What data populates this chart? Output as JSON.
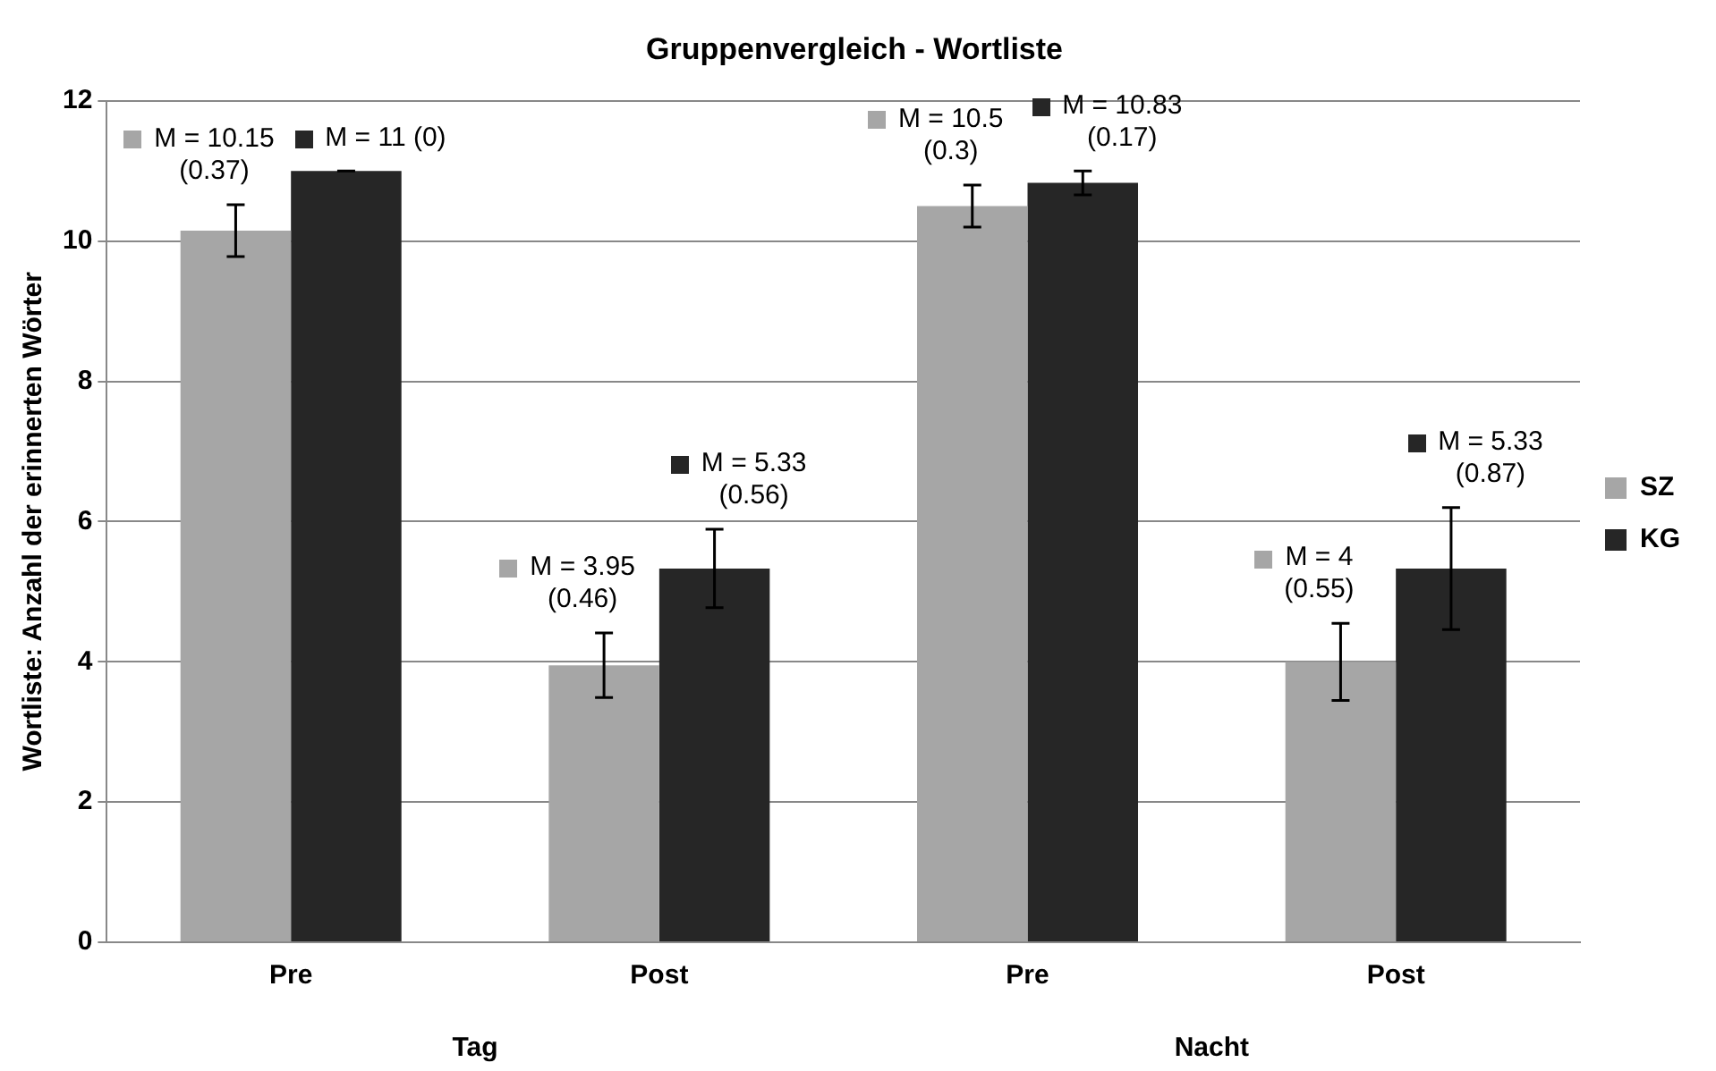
{
  "chart_data": {
    "type": "bar",
    "title": "Gruppenvergleich - Wortliste",
    "ylabel": "Wortliste: Anzahl der erinnerten Wörter",
    "categories": [
      "Pre",
      "Post",
      "Pre",
      "Post"
    ],
    "annotations": [
      "Tag",
      "Nacht"
    ],
    "series": [
      {
        "name": "SZ",
        "color": "#a6a6a6",
        "values": [
          10.15,
          3.95,
          10.5,
          4
        ],
        "errors": [
          0.37,
          0.46,
          0.3,
          0.55
        ],
        "value_labels": [
          "M = 10.15 (0.37)",
          "M = 3.95 (0.46)",
          "M = 10.5 (0.3)",
          "M = 4 (0.55)"
        ]
      },
      {
        "name": "KG",
        "color": "#262626",
        "values": [
          11,
          5.33,
          10.83,
          5.33
        ],
        "errors": [
          0,
          0.56,
          0.17,
          0.87
        ],
        "value_labels": [
          "M = 11 (0)",
          "M = 5.33 (0.56)",
          "M = 10.83 (0.17)",
          "M = 5.33 (0.87)"
        ]
      }
    ],
    "ylim": [
      0,
      12
    ],
    "yticks": [
      0,
      2,
      4,
      6,
      8,
      10,
      12
    ],
    "grid": "y",
    "legend": "right"
  }
}
